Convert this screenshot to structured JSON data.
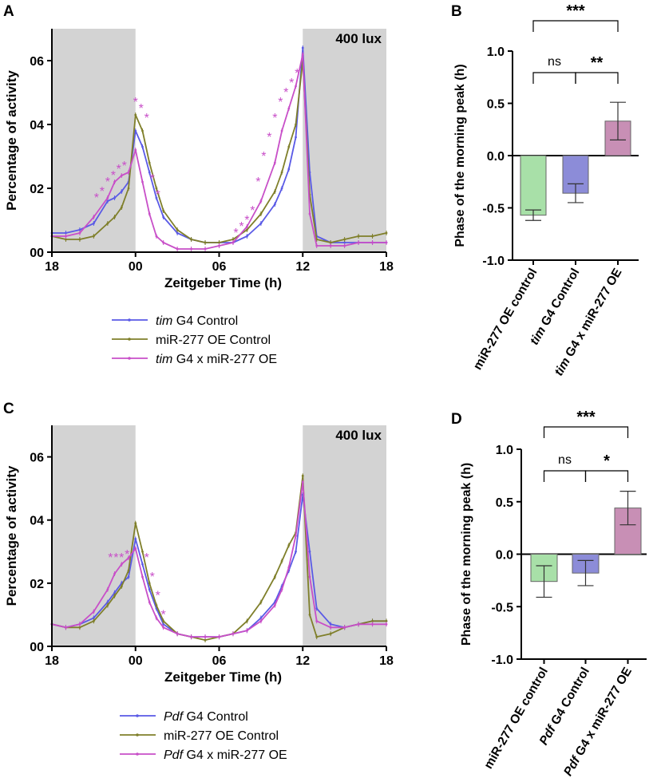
{
  "chart_data": [
    {
      "panel": "A",
      "type": "line",
      "badge": "400 lux",
      "xlabel": "Zeitgeber Time (h)",
      "ylabel": "Percentage of activity",
      "xticks": [
        "18",
        "00",
        "06",
        "12",
        "18"
      ],
      "yticks": [
        "00",
        "02",
        "04",
        "06"
      ],
      "xlim": [
        -6,
        18
      ],
      "ylim": [
        0,
        0.07
      ],
      "dark_periods": [
        [
          -6,
          0
        ],
        [
          12,
          18
        ]
      ],
      "x": [
        -6,
        -5,
        -4,
        -3,
        -2,
        -1.5,
        -1,
        -0.5,
        0,
        0.5,
        1,
        1.5,
        2,
        3,
        4,
        5,
        6,
        7,
        8,
        9,
        10,
        10.5,
        11,
        11.5,
        12,
        12.5,
        13,
        14,
        15,
        16,
        17,
        18
      ],
      "series": [
        {
          "name": "tim G4 Control",
          "italic": "tim",
          "rest": " G4 Control",
          "color": "#5a5ae6",
          "values": [
            0.006,
            0.006,
            0.007,
            0.009,
            0.016,
            0.017,
            0.019,
            0.022,
            0.038,
            0.033,
            0.025,
            0.017,
            0.011,
            0.006,
            0.004,
            0.003,
            0.003,
            0.003,
            0.005,
            0.009,
            0.015,
            0.02,
            0.026,
            0.036,
            0.064,
            0.025,
            0.005,
            0.003,
            0.003,
            0.003,
            0.003,
            0.003
          ]
        },
        {
          "name": "miR-277 OE Control",
          "italic": "",
          "rest": "miR-277 OE Control",
          "color": "#7f7f2a",
          "values": [
            0.005,
            0.004,
            0.004,
            0.005,
            0.009,
            0.011,
            0.014,
            0.02,
            0.043,
            0.038,
            0.028,
            0.02,
            0.013,
            0.007,
            0.004,
            0.003,
            0.003,
            0.004,
            0.007,
            0.012,
            0.019,
            0.025,
            0.033,
            0.04,
            0.06,
            0.018,
            0.004,
            0.003,
            0.004,
            0.005,
            0.005,
            0.006
          ]
        },
        {
          "name": "tim G4 x miR-277 OE",
          "italic": "tim",
          "rest": " G4 x miR-277 OE",
          "color": "#c84fc8",
          "values": [
            0.005,
            0.005,
            0.006,
            0.011,
            0.017,
            0.022,
            0.024,
            0.025,
            0.032,
            0.022,
            0.012,
            0.005,
            0.003,
            0.001,
            0.001,
            0.001,
            0.002,
            0.003,
            0.008,
            0.016,
            0.028,
            0.038,
            0.045,
            0.052,
            0.062,
            0.012,
            0.002,
            0.002,
            0.002,
            0.003,
            0.003,
            0.003
          ]
        }
      ],
      "significance_stars": [
        "*",
        "*",
        "*",
        "*",
        "*",
        "*",
        "*",
        "*",
        "*",
        "*",
        "*",
        "*",
        "*",
        "*",
        "*",
        "*",
        "*",
        "*",
        "*",
        "*",
        "*",
        "*",
        "*"
      ],
      "star_x": [
        -2.8,
        -2.4,
        -2.0,
        -1.6,
        -1.2,
        -0.8,
        0.0,
        0.4,
        0.8,
        1.2,
        1.6,
        7.2,
        7.6,
        8.0,
        8.4,
        8.8,
        9.2,
        9.6,
        10.0,
        10.4,
        10.8,
        11.2,
        11.6
      ],
      "star_y": [
        0.017,
        0.019,
        0.022,
        0.024,
        0.026,
        0.027,
        0.047,
        0.045,
        0.042,
        0.023,
        0.018,
        0.006,
        0.008,
        0.01,
        0.013,
        0.022,
        0.03,
        0.036,
        0.042,
        0.047,
        0.05,
        0.053,
        0.056
      ]
    },
    {
      "panel": "B",
      "type": "bar",
      "ylabel": "Phase of the morning peak (h)",
      "yticks": [
        "1.0",
        "0.5",
        "0.0",
        "-0.5",
        "-1.0"
      ],
      "ytick_values": [
        1.0,
        0.5,
        0.0,
        -0.5,
        -1.0
      ],
      "ylim": [
        -1.0,
        1.0
      ],
      "categories": [
        "miR-277 OE control",
        "tim G4 Control",
        "tim G4 x miR-277 OE"
      ],
      "category_parts": [
        [
          "",
          "miR-277 OE control"
        ],
        [
          "tim",
          " G4 Control"
        ],
        [
          "tim",
          " G4 x miR-277 OE"
        ]
      ],
      "values": [
        -0.57,
        -0.36,
        0.33
      ],
      "errors": [
        0.05,
        0.09,
        0.18
      ],
      "colors": [
        "#a8e0a8",
        "#8c8cd8",
        "#c88fb5"
      ],
      "comparisons": [
        {
          "label": "ns",
          "from": 0,
          "to": 1,
          "level": 0
        },
        {
          "label": "**",
          "from": 1,
          "to": 2,
          "level": 0
        },
        {
          "label": "***",
          "from": 0,
          "to": 2,
          "level": 1
        }
      ]
    },
    {
      "panel": "C",
      "type": "line",
      "badge": "400 lux",
      "xlabel": "Zeitgeber Time (h)",
      "ylabel": "Percentage of activity",
      "xticks": [
        "18",
        "00",
        "06",
        "12",
        "18"
      ],
      "yticks": [
        "00",
        "02",
        "04",
        "06"
      ],
      "xlim": [
        -6,
        18
      ],
      "ylim": [
        0,
        0.07
      ],
      "dark_periods": [
        [
          -6,
          0
        ],
        [
          12,
          18
        ]
      ],
      "x": [
        -6,
        -5,
        -4,
        -3,
        -2,
        -1.5,
        -1,
        -0.5,
        0,
        0.5,
        1,
        1.5,
        2,
        3,
        4,
        5,
        6,
        7,
        8,
        9,
        10,
        10.5,
        11,
        11.5,
        12,
        12.5,
        13,
        14,
        15,
        16,
        17,
        18
      ],
      "series": [
        {
          "name": "Pdf G4 Control",
          "italic": "Pdf",
          "rest": " G4 Control",
          "color": "#5a5ae6",
          "values": [
            0.007,
            0.006,
            0.007,
            0.009,
            0.014,
            0.017,
            0.02,
            0.022,
            0.034,
            0.026,
            0.018,
            0.012,
            0.007,
            0.004,
            0.003,
            0.003,
            0.003,
            0.004,
            0.005,
            0.009,
            0.014,
            0.019,
            0.024,
            0.03,
            0.048,
            0.03,
            0.012,
            0.007,
            0.006,
            0.007,
            0.008,
            0.008
          ]
        },
        {
          "name": "miR-277 OE Control",
          "italic": "",
          "rest": "miR-277 OE Control",
          "color": "#7f7f2a",
          "values": [
            0.007,
            0.006,
            0.006,
            0.008,
            0.013,
            0.016,
            0.019,
            0.024,
            0.039,
            0.03,
            0.02,
            0.013,
            0.008,
            0.004,
            0.003,
            0.002,
            0.003,
            0.004,
            0.008,
            0.014,
            0.022,
            0.027,
            0.032,
            0.036,
            0.054,
            0.01,
            0.003,
            0.004,
            0.006,
            0.007,
            0.008,
            0.008
          ]
        },
        {
          "name": "Pdf G4 x miR-277 OE",
          "italic": "Pdf",
          "rest": " G4 x miR-277 OE",
          "color": "#c84fc8",
          "values": [
            0.007,
            0.006,
            0.007,
            0.011,
            0.018,
            0.023,
            0.026,
            0.028,
            0.031,
            0.022,
            0.014,
            0.009,
            0.006,
            0.004,
            0.003,
            0.003,
            0.003,
            0.004,
            0.005,
            0.008,
            0.013,
            0.018,
            0.025,
            0.035,
            0.052,
            0.022,
            0.008,
            0.006,
            0.006,
            0.007,
            0.007,
            0.007
          ]
        }
      ],
      "significance_stars": [
        "*",
        "*",
        "*",
        "*",
        "*",
        "*",
        "*",
        "*"
      ],
      "star_x": [
        -1.8,
        -1.4,
        -1.0,
        -0.6,
        0.8,
        1.2,
        1.6,
        2.0
      ],
      "star_y": [
        0.028,
        0.028,
        0.028,
        0.029,
        0.028,
        0.022,
        0.016,
        0.01
      ]
    },
    {
      "panel": "D",
      "type": "bar",
      "ylabel": "Phase of the morning peak (h)",
      "yticks": [
        "1.0",
        "0.5",
        "0.0",
        "-0.5",
        "-1.0"
      ],
      "ytick_values": [
        1.0,
        0.5,
        0.0,
        -0.5,
        -1.0
      ],
      "ylim": [
        -1.0,
        1.0
      ],
      "categories": [
        "miR-277 OE control",
        "Pdf G4 Control",
        "Pdf G4 x miR-277 OE"
      ],
      "category_parts": [
        [
          "",
          "miR-277 OE control"
        ],
        [
          "Pdf",
          " G4 Control"
        ],
        [
          "Pdf",
          " G4 x miR-277 OE"
        ]
      ],
      "values": [
        -0.26,
        -0.18,
        0.44
      ],
      "errors": [
        0.15,
        0.12,
        0.16
      ],
      "colors": [
        "#a8e0a8",
        "#8c8cd8",
        "#c88fb5"
      ],
      "comparisons": [
        {
          "label": "ns",
          "from": 0,
          "to": 1,
          "level": 0
        },
        {
          "label": "*",
          "from": 1,
          "to": 2,
          "level": 0
        },
        {
          "label": "***",
          "from": 0,
          "to": 2,
          "level": 1
        }
      ]
    }
  ]
}
